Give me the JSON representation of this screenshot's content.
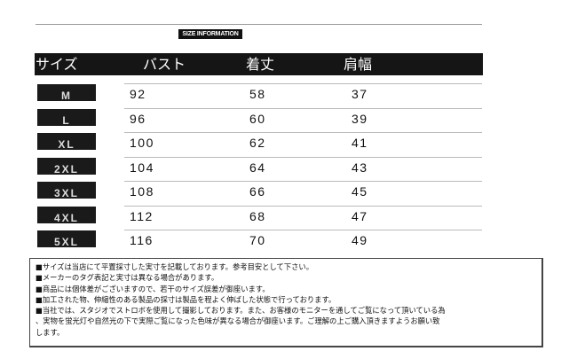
{
  "badge": "SIZE INFORMATION",
  "headers": [
    "サイズ",
    "バスト",
    "着丈",
    "肩幅"
  ],
  "rows": [
    {
      "size": "M",
      "bust": "92",
      "length": "58",
      "shoulder": "37"
    },
    {
      "size": "L",
      "bust": "96",
      "length": "60",
      "shoulder": "39"
    },
    {
      "size": "XL",
      "bust": "100",
      "length": "62",
      "shoulder": "41"
    },
    {
      "size": "2XL",
      "bust": "104",
      "length": "64",
      "shoulder": "43"
    },
    {
      "size": "3XL",
      "bust": "108",
      "length": "66",
      "shoulder": "45"
    },
    {
      "size": "4XL",
      "bust": "112",
      "length": "68",
      "shoulder": "47"
    },
    {
      "size": "5XL",
      "bust": "116",
      "length": "70",
      "shoulder": "49"
    }
  ],
  "notes": [
    "■サイズは当店にて平置採寸した実寸を記載しております。参考目安として下さい。",
    "■メーカーのタグ表記と実寸は異なる場合があります。",
    "■商品には個体差がございますので、若干のサイズ誤差が御座います。",
    "■加工された物、伸縮性のある製品の採寸は製品を程よく伸ばした状態で行っております。",
    "■当社では、スタジオでストロボを使用して撮影しております。また、お客様のモニターを通してご覧になって頂いている為",
    "、実物を蛍光灯や自然光の下で実際ご覧になった色味が異なる場合が御座います。ご理解の上ご購入頂きますようお願い致",
    "します。"
  ]
}
